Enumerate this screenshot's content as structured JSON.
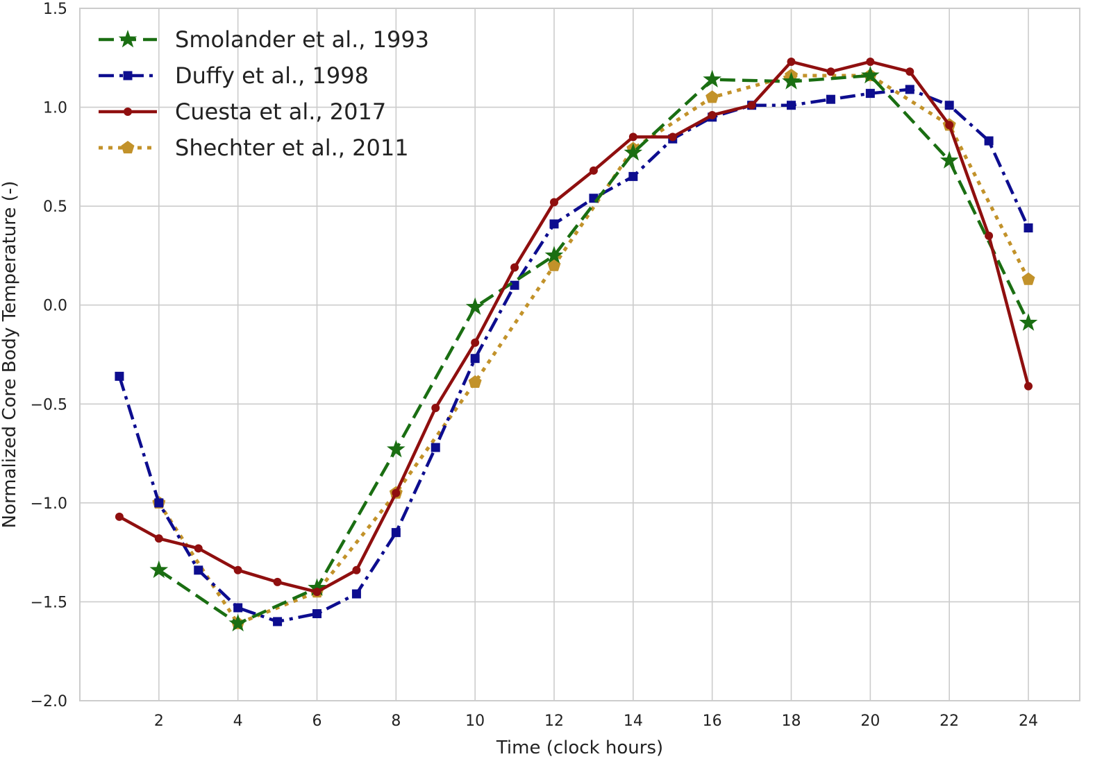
{
  "chart_data": {
    "type": "line",
    "title": "",
    "xlabel": "Time (clock hours)",
    "ylabel": "Normalized Core Body Temperature (-)",
    "xlim": [
      0,
      25.3
    ],
    "ylim": [
      -2.0,
      1.5
    ],
    "xticks": [
      2,
      4,
      6,
      8,
      10,
      12,
      14,
      16,
      18,
      20,
      22,
      24
    ],
    "xtick_labels": [
      "2",
      "4",
      "6",
      "8",
      "10",
      "12",
      "14",
      "16",
      "18",
      "20",
      "22",
      "24"
    ],
    "yticks": [
      1.5,
      1.0,
      0.5,
      0.0,
      -0.5,
      -1.0,
      -1.5,
      -2.0
    ],
    "ytick_labels": [
      "1.5",
      "1.0",
      "0.5",
      "0.0",
      "−0.5",
      "−1.0",
      "−1.5",
      "−2.0"
    ],
    "grid": true,
    "legend_position": "top-left",
    "series": [
      {
        "name": "Smolander et al., 1993",
        "color": "#1a6e12",
        "line_style": "dashed",
        "marker": "star",
        "x": [
          2,
          4,
          6,
          8,
          10,
          12,
          14,
          16,
          18,
          20,
          22,
          24
        ],
        "y": [
          -1.34,
          -1.61,
          -1.43,
          -0.73,
          -0.01,
          0.25,
          0.77,
          1.14,
          1.13,
          1.16,
          0.73,
          -0.09
        ]
      },
      {
        "name": "Duffy et al., 1998",
        "color": "#0d0d8f",
        "line_style": "dash-dot",
        "marker": "square",
        "x": [
          1,
          2,
          3,
          4,
          5,
          6,
          7,
          8,
          9,
          10,
          11,
          12,
          13,
          14,
          15,
          16,
          17,
          18,
          19,
          20,
          21,
          22,
          23,
          24
        ],
        "y": [
          -0.36,
          -1.0,
          -1.34,
          -1.53,
          -1.6,
          -1.56,
          -1.46,
          -1.15,
          -0.72,
          -0.27,
          0.1,
          0.41,
          0.54,
          0.65,
          0.84,
          0.95,
          1.01,
          1.01,
          1.04,
          1.07,
          1.09,
          1.01,
          0.83,
          0.39
        ]
      },
      {
        "name": "Cuesta et al., 2017",
        "color": "#8f0f0f",
        "line_style": "solid",
        "marker": "circle",
        "x": [
          1,
          2,
          3,
          4,
          5,
          6,
          7,
          8,
          9,
          10,
          11,
          12,
          13,
          14,
          15,
          16,
          17,
          18,
          19,
          20,
          21,
          22,
          23,
          24
        ],
        "y": [
          -1.07,
          -1.18,
          -1.23,
          -1.34,
          -1.4,
          -1.45,
          -1.34,
          -0.95,
          -0.52,
          -0.19,
          0.19,
          0.52,
          0.68,
          0.85,
          0.85,
          0.96,
          1.01,
          1.23,
          1.18,
          1.23,
          1.18,
          0.91,
          0.35,
          -0.41
        ]
      },
      {
        "name": "Shechter et al., 2011",
        "color": "#c2922a",
        "line_style": "dotted",
        "marker": "pentagon",
        "x": [
          2,
          4,
          6,
          8,
          10,
          12,
          14,
          16,
          18,
          20,
          22,
          24
        ],
        "y": [
          -1.0,
          -1.61,
          -1.45,
          -0.95,
          -0.39,
          0.2,
          0.79,
          1.05,
          1.16,
          1.16,
          0.91,
          0.13
        ]
      }
    ]
  }
}
